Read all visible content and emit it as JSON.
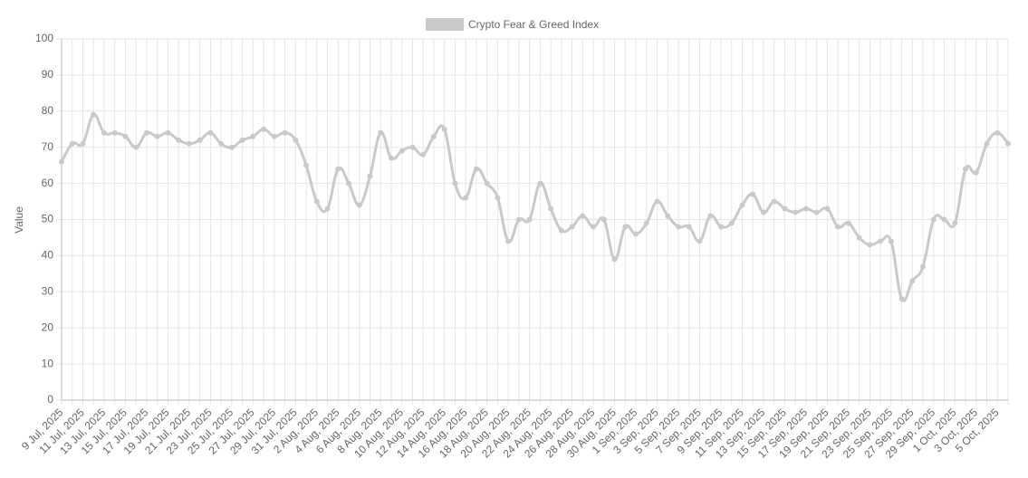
{
  "chart_data": {
    "type": "line",
    "legend_position": "top",
    "y_label": "Value",
    "categories": [
      "9 Jul, 2025",
      null,
      "11 Jul, 2025",
      null,
      "13 Jul, 2025",
      null,
      "15 Jul, 2025",
      null,
      "17 Jul, 2025",
      null,
      "19 Jul, 2025",
      null,
      "21 Jul, 2025",
      null,
      "23 Jul, 2025",
      null,
      "25 Jul, 2025",
      null,
      "27 Jul, 2025",
      null,
      "29 Jul, 2025",
      null,
      "31 Jul, 2025",
      null,
      "2 Aug, 2025",
      null,
      "4 Aug, 2025",
      null,
      "6 Aug, 2025",
      null,
      "8 Aug, 2025",
      null,
      "10 Aug, 2025",
      null,
      "12 Aug, 2025",
      null,
      "14 Aug, 2025",
      null,
      "16 Aug, 2025",
      null,
      "18 Aug, 2025",
      null,
      "20 Aug, 2025",
      null,
      "22 Aug, 2025",
      null,
      "24 Aug, 2025",
      null,
      "26 Aug, 2025",
      null,
      "28 Aug, 2025",
      null,
      "30 Aug, 2025",
      null,
      "1 Sep, 2025",
      null,
      "3 Sep, 2025",
      null,
      "5 Sep, 2025",
      null,
      "7 Sep, 2025",
      null,
      "9 Sep, 2025",
      null,
      "11 Sep, 2025",
      null,
      "13 Sep, 2025",
      null,
      "15 Sep, 2025",
      null,
      "17 Sep, 2025",
      null,
      "19 Sep, 2025",
      null,
      "21 Sep, 2025",
      null,
      "23 Sep, 2025",
      null,
      "25 Sep, 2025",
      null,
      "27 Sep, 2025",
      null,
      "29 Sep, 2025",
      null,
      "1 Oct, 2025",
      null,
      "3 Oct, 2025",
      null,
      "5 Oct, 2025",
      null
    ],
    "series": [
      {
        "name": "Crypto Fear & Greed Index",
        "color": "#c9c9c9",
        "values": [
          66,
          71,
          71,
          79,
          74,
          74,
          73,
          70,
          74,
          73,
          74,
          72,
          71,
          72,
          74,
          71,
          70,
          72,
          73,
          75,
          73,
          74,
          72,
          65,
          55,
          53,
          64,
          60,
          54,
          62,
          74,
          67,
          69,
          70,
          68,
          73,
          75,
          60,
          56,
          64,
          60,
          56,
          44,
          50,
          50,
          60,
          53,
          47,
          48,
          51,
          48,
          50,
          39,
          48,
          46,
          49,
          55,
          51,
          48,
          48,
          44,
          51,
          48,
          49,
          54,
          57,
          52,
          55,
          53,
          52,
          53,
          52,
          53,
          48,
          49,
          45,
          43,
          44,
          44,
          28,
          33,
          37,
          50,
          50,
          49,
          64,
          63,
          71,
          74,
          71
        ]
      }
    ],
    "ylim": [
      0,
      100
    ],
    "yticks": [
      0,
      10,
      20,
      30,
      40,
      50,
      60,
      70,
      80,
      90,
      100
    ],
    "grid": true
  }
}
